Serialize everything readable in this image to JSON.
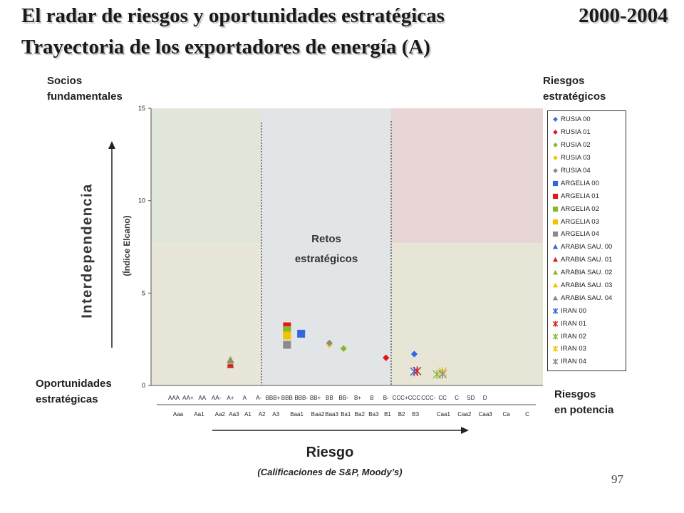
{
  "header": {
    "title_line1": "El radar de riesgos y oportunidades estratégicas",
    "years": "2000-2004",
    "title_line2": "Trayectoria de los exportadores de energía (A)"
  },
  "quadrants": {
    "top_left": "Socios\nfundamentales",
    "top_right": "Riesgos\nestratégicos",
    "bottom_left": "Oportunidades\nestratégicas",
    "bottom_right": "Riesgos\nen potencia",
    "center": "Retos\nestratégicos"
  },
  "axes": {
    "ylabel": "Interdependencia",
    "ysub": "(Índice Elcano)",
    "xlabel": "Riesgo",
    "xsub": "(Calificaciones de S&P, Moody’s)"
  },
  "page_number": "97",
  "colors": {
    "region_green": "#e1e6da",
    "region_center": "#e1e5e8",
    "region_red": "#e8d6d6",
    "region_tan": "#e8e6d8",
    "region_olive": "#e7e6d6"
  },
  "chart_data": {
    "type": "scatter",
    "ylim": [
      0,
      15
    ],
    "yticks": [
      "0",
      "5",
      "10",
      "15"
    ],
    "x_ticks_sp": [
      "AAA",
      "AA+",
      "AA",
      "AA-",
      "A+",
      "A",
      "A-",
      "BBB+",
      "BBB",
      "BBB-",
      "BB+",
      "BB",
      "BB-",
      "B+",
      "B",
      "B-",
      "CCC+",
      "CCC",
      "CCC-",
      "CC",
      "C",
      "SD",
      "D"
    ],
    "x_ticks_moodys": [
      "Aaa",
      "Aa1",
      "Aa2",
      "Aa3",
      "A1",
      "A2",
      "A3",
      "Baa1",
      "Baa2",
      "Baa3",
      "Ba1",
      "Ba2",
      "Ba3",
      "B1",
      "B2",
      "B3",
      "Caa1",
      "Caa2",
      "Caa3",
      "Ca",
      "C"
    ],
    "legend_position": "right",
    "series": [
      {
        "name": "RUSIA 00",
        "marker": "diamond",
        "color": "#3366e0",
        "points": [
          [
            17,
            1.7
          ]
        ]
      },
      {
        "name": "RUSIA 01",
        "marker": "diamond",
        "color": "#e01818",
        "points": [
          [
            15,
            1.5
          ]
        ]
      },
      {
        "name": "RUSIA 02",
        "marker": "diamond",
        "color": "#8ab628",
        "points": [
          [
            12,
            2.0
          ]
        ]
      },
      {
        "name": "RUSIA 03",
        "marker": "diamond",
        "color": "#f2c400",
        "points": [
          [
            11,
            2.2
          ]
        ]
      },
      {
        "name": "RUSIA 04",
        "marker": "diamond",
        "color": "#8a8a8a",
        "points": [
          [
            11,
            2.3
          ]
        ]
      },
      {
        "name": "ARGELIA 00",
        "marker": "square",
        "color": "#3366e0",
        "points": [
          [
            9,
            2.8
          ]
        ]
      },
      {
        "name": "ARGELIA 01",
        "marker": "square",
        "color": "#e01818",
        "points": [
          [
            8,
            3.2
          ]
        ]
      },
      {
        "name": "ARGELIA 02",
        "marker": "square",
        "color": "#8ab628",
        "points": [
          [
            8,
            3.0
          ]
        ]
      },
      {
        "name": "ARGELIA 03",
        "marker": "square",
        "color": "#f2c400",
        "points": [
          [
            8,
            2.7
          ]
        ]
      },
      {
        "name": "ARGELIA 04",
        "marker": "square",
        "color": "#8a8a8a",
        "points": [
          [
            8,
            2.2
          ]
        ]
      },
      {
        "name": "ARABIA SAU. 00",
        "marker": "triangle",
        "color": "#3366e0",
        "points": [
          [
            4,
            1.2
          ]
        ]
      },
      {
        "name": "ARABIA SAU. 01",
        "marker": "triangle",
        "color": "#e01818",
        "points": [
          [
            4,
            1.1
          ]
        ]
      },
      {
        "name": "ARABIA SAU. 02",
        "marker": "triangle",
        "color": "#8ab628",
        "points": [
          [
            4,
            1.4
          ]
        ]
      },
      {
        "name": "ARABIA SAU. 03",
        "marker": "triangle",
        "color": "#f2c400",
        "points": [
          [
            4,
            1.3
          ]
        ]
      },
      {
        "name": "ARABIA SAU. 04",
        "marker": "triangle",
        "color": "#8a8a8a",
        "points": [
          [
            4,
            1.35
          ]
        ]
      },
      {
        "name": "IRAN 00",
        "marker": "star",
        "color": "#3366e0",
        "points": [
          [
            17,
            0.75
          ]
        ]
      },
      {
        "name": "IRAN 01",
        "marker": "star",
        "color": "#e01818",
        "points": [
          [
            17.2,
            0.78
          ]
        ]
      },
      {
        "name": "IRAN 02",
        "marker": "star",
        "color": "#8ab628",
        "points": [
          [
            18.6,
            0.6
          ]
        ]
      },
      {
        "name": "IRAN 03",
        "marker": "star",
        "color": "#f2c400",
        "points": [
          [
            19,
            0.75
          ]
        ]
      },
      {
        "name": "IRAN 04",
        "marker": "star",
        "color": "#8a8a8a",
        "points": [
          [
            19,
            0.62
          ]
        ]
      }
    ]
  }
}
